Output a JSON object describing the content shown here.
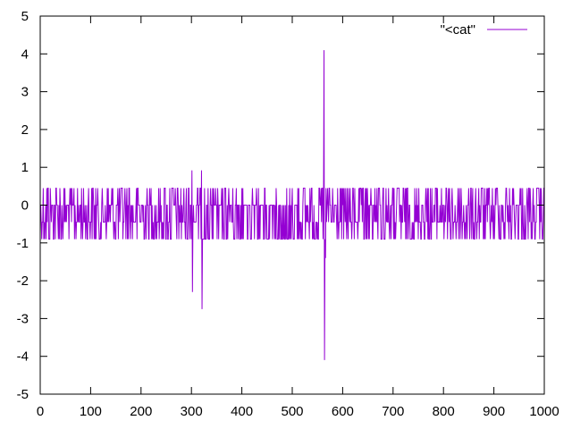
{
  "chart_data": {
    "type": "line",
    "title": "",
    "xlabel": "",
    "ylabel": "",
    "xlim": [
      0,
      1000
    ],
    "ylim": [
      -5,
      5
    ],
    "x_ticks": [
      "0",
      "100",
      "200",
      "300",
      "400",
      "500",
      "600",
      "700",
      "800",
      "900",
      "1000"
    ],
    "y_ticks": [
      "5",
      "4",
      "3",
      "2",
      "1",
      "0",
      "-1",
      "-2",
      "-3",
      "-4",
      "-5"
    ],
    "grid": false,
    "legend_position": "top-right",
    "series": [
      {
        "name": "\"<cat\"",
        "color": "#9400d3",
        "x_range": [
          0,
          1000
        ],
        "typical_levels": [
          0.45,
          0,
          -0.45,
          -0.9
        ],
        "spikes": [
          {
            "x": 301,
            "y": 0.92
          },
          {
            "x": 302,
            "y": -2.3
          },
          {
            "x": 320,
            "y": 0.92
          },
          {
            "x": 321,
            "y": -2.75
          },
          {
            "x": 563,
            "y": 4.1
          },
          {
            "x": 564,
            "y": -4.1
          },
          {
            "x": 566,
            "y": -1.4
          }
        ],
        "quiet_segments": [
          {
            "x": [
              320,
              360
            ],
            "levels": [
              0,
              -0.9
            ]
          },
          {
            "x": [
              390,
              500
            ],
            "levels": [
              0,
              -0.9
            ]
          },
          {
            "x": [
              640,
              660
            ],
            "levels": [
              0,
              -0.9
            ]
          }
        ]
      }
    ]
  }
}
